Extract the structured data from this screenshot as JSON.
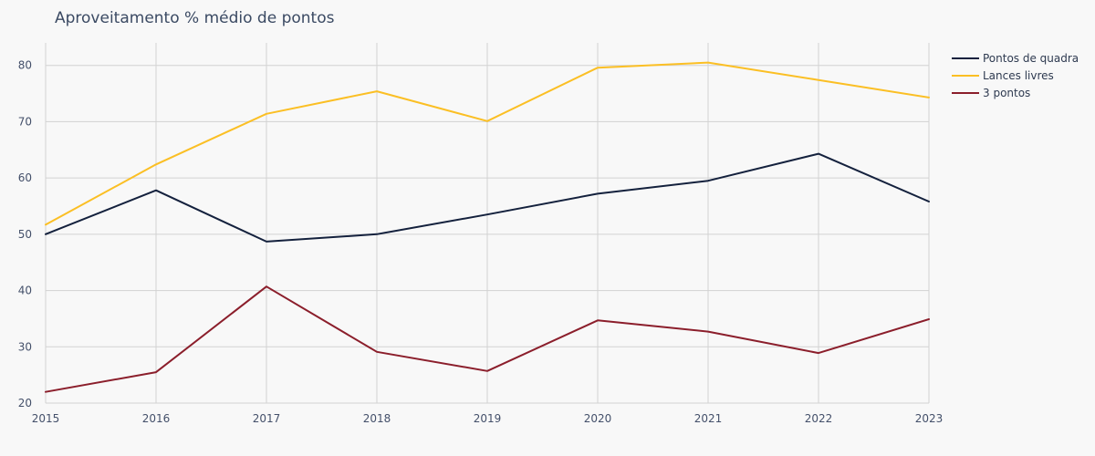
{
  "chart_data": {
    "type": "line",
    "title": "Aproveitamento % médio de pontos",
    "xlabel": "",
    "ylabel": "",
    "x": [
      2015,
      2016,
      2017,
      2018,
      2019,
      2020,
      2021,
      2022,
      2023
    ],
    "x_tick_labels": [
      "2015",
      "2016",
      "2017",
      "2018",
      "2019",
      "2020",
      "2021",
      "2022",
      "2023"
    ],
    "ylim": [
      20,
      84
    ],
    "y_ticks": [
      20,
      30,
      40,
      50,
      60,
      70,
      80
    ],
    "grid": true,
    "legend_position": "top-right",
    "series": [
      {
        "name": "Pontos de quadra",
        "color": "#14213d",
        "values": [
          50.0,
          57.8,
          48.7,
          50.0,
          53.5,
          57.2,
          59.5,
          64.3,
          55.8
        ]
      },
      {
        "name": "Lances livres",
        "color": "#fbbf24",
        "values": [
          51.7,
          62.4,
          71.4,
          75.4,
          70.1,
          79.6,
          80.5,
          77.4,
          74.3
        ]
      },
      {
        "name": "3 pontos",
        "color": "#8b1e2b",
        "values": [
          22.0,
          25.5,
          40.7,
          29.1,
          25.7,
          34.7,
          32.7,
          28.9,
          34.9
        ]
      }
    ]
  }
}
